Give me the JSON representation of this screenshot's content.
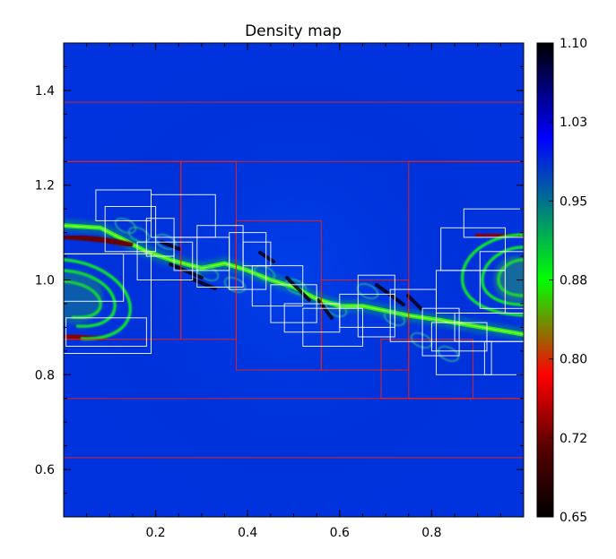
{
  "chart_data": {
    "type": "heatmap",
    "title": "Density map",
    "xlabel": "",
    "ylabel": "",
    "xlim": [
      0.0,
      1.0
    ],
    "ylim": [
      0.5,
      1.5
    ],
    "x_ticks": [
      "0.2",
      "0.4",
      "0.6",
      "0.8"
    ],
    "x_tick_values": [
      0.2,
      0.4,
      0.6,
      0.8
    ],
    "y_ticks": [
      "0.6",
      "0.8",
      "1.0",
      "1.2",
      "1.4"
    ],
    "y_tick_values": [
      0.6,
      0.8,
      1.0,
      1.2,
      1.4
    ],
    "colorbar": {
      "range": [
        0.65,
        1.1
      ],
      "tick_labels": [
        "1.10",
        "1.03",
        "0.95",
        "0.88",
        "0.80",
        "0.72",
        "0.65"
      ],
      "tick_values": [
        1.1,
        1.025,
        0.95,
        0.875,
        0.8,
        0.725,
        0.65
      ],
      "colors": [
        "#000000",
        "#5a0000",
        "#ff0000",
        "#00ff00",
        "#0000ff",
        "#000000"
      ],
      "color_stops": [
        0.0,
        0.15,
        0.3,
        0.5,
        0.8,
        1.0
      ]
    },
    "background_color": "#0033dd",
    "interface_color": "#22ee22",
    "grid_colors": {
      "level_1": "#ff2200",
      "level_2": "#ffffff"
    },
    "interface_path": [
      [
        0.0,
        1.115
      ],
      [
        0.08,
        1.11
      ],
      [
        0.12,
        1.09
      ],
      [
        0.18,
        1.06
      ],
      [
        0.24,
        1.04
      ],
      [
        0.3,
        1.025
      ],
      [
        0.35,
        1.035
      ],
      [
        0.4,
        1.02
      ],
      [
        0.45,
        1.0
      ],
      [
        0.5,
        0.985
      ],
      [
        0.55,
        0.96
      ],
      [
        0.6,
        0.945
      ],
      [
        0.65,
        0.945
      ],
      [
        0.7,
        0.935
      ],
      [
        0.75,
        0.925
      ],
      [
        0.82,
        0.915
      ],
      [
        0.88,
        0.905
      ],
      [
        0.94,
        0.895
      ],
      [
        1.0,
        0.885
      ]
    ],
    "amr_red_boxes": [
      [
        0.0,
        0.75,
        1.0,
        1.25
      ],
      [
        0.0,
        0.625,
        1.0,
        1.375
      ],
      [
        0.0,
        0.875,
        0.255,
        1.25
      ],
      [
        0.255,
        0.875,
        0.375,
        1.25
      ],
      [
        0.375,
        0.81,
        0.56,
        1.125
      ],
      [
        0.56,
        0.81,
        0.75,
        1.0
      ],
      [
        0.75,
        0.75,
        1.0,
        1.25
      ],
      [
        0.69,
        0.75,
        0.89,
        0.875
      ]
    ],
    "amr_white_boxes": [
      [
        0.0,
        0.845,
        0.19,
        1.055
      ],
      [
        0.0,
        0.955,
        0.13,
        1.055
      ],
      [
        0.005,
        0.86,
        0.18,
        0.92
      ],
      [
        0.07,
        1.125,
        0.19,
        1.19
      ],
      [
        0.09,
        1.06,
        0.2,
        1.155
      ],
      [
        0.19,
        1.09,
        0.33,
        1.18
      ],
      [
        0.16,
        1.0,
        0.28,
        1.08
      ],
      [
        0.18,
        1.05,
        0.24,
        1.13
      ],
      [
        0.24,
        1.02,
        0.36,
        1.09
      ],
      [
        0.29,
        0.985,
        0.39,
        1.115
      ],
      [
        0.36,
        0.98,
        0.44,
        1.1
      ],
      [
        0.39,
        1.03,
        0.45,
        1.08
      ],
      [
        0.41,
        0.945,
        0.52,
        1.03
      ],
      [
        0.45,
        0.91,
        0.55,
        0.99
      ],
      [
        0.48,
        0.89,
        0.6,
        0.95
      ],
      [
        0.52,
        0.86,
        0.65,
        0.94
      ],
      [
        0.6,
        0.9,
        0.72,
        0.97
      ],
      [
        0.64,
        0.88,
        0.72,
        1.01
      ],
      [
        0.71,
        0.87,
        0.81,
        0.98
      ],
      [
        0.78,
        0.84,
        0.86,
        0.94
      ],
      [
        0.8,
        0.85,
        0.92,
        0.91
      ],
      [
        0.81,
        0.8,
        0.93,
        0.87
      ],
      [
        0.85,
        0.87,
        1.0,
        0.93
      ],
      [
        0.81,
        0.93,
        0.96,
        1.02
      ],
      [
        0.82,
        1.02,
        0.96,
        1.11
      ],
      [
        0.87,
        1.09,
        1.0,
        1.15
      ],
      [
        0.905,
        0.94,
        1.0,
        1.06
      ],
      [
        0.915,
        0.8,
        1.0,
        0.87
      ]
    ]
  }
}
